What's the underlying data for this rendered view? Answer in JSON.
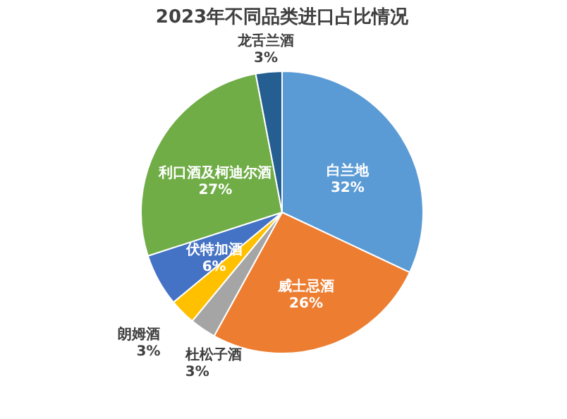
{
  "chart_data": {
    "type": "pie",
    "title": "2023年不同品类进口占比情况",
    "categories": [
      "白兰地",
      "威士忌酒",
      "杜松子酒",
      "朗姆酒",
      "伏特加酒",
      "利口酒及柯迪尔酒",
      "龙舌兰酒"
    ],
    "values": [
      32,
      26,
      3,
      3,
      6,
      27,
      3
    ],
    "value_labels": [
      "32%",
      "26%",
      "3%",
      "3%",
      "6%",
      "27%",
      "3%"
    ],
    "colors": [
      "#5b9bd5",
      "#ed7d31",
      "#a5a5a5",
      "#ffc000",
      "#4472c4",
      "#70ad47",
      "#255e91"
    ],
    "legend": false
  }
}
